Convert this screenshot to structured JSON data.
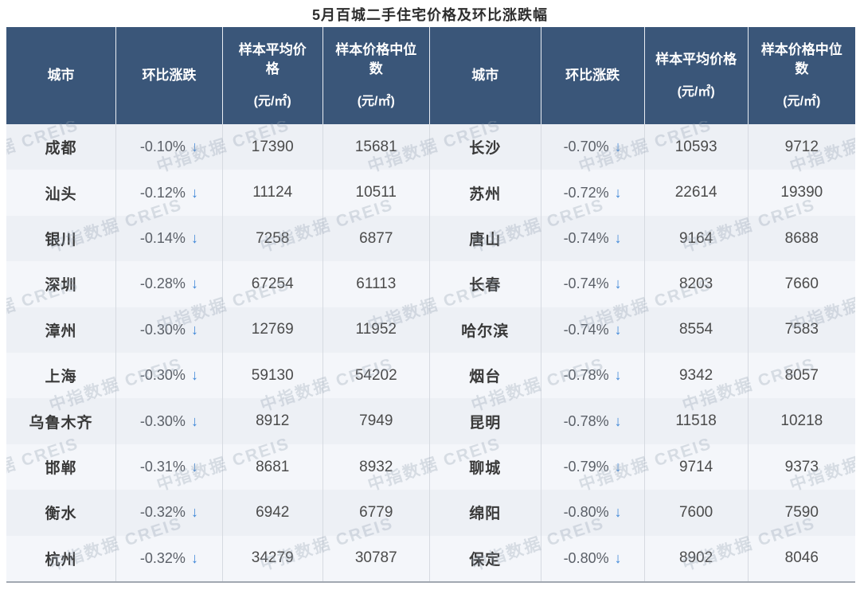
{
  "chart_data": {
    "type": "table",
    "title": "5月百城二手住宅价格及环比涨跌幅",
    "columns": [
      "城市",
      "环比涨跌",
      "样本平均价格",
      "样本价格中位数"
    ],
    "unit_label": "(元/㎡)",
    "arrow_down": "↓",
    "watermark_text": "中指数据 CREIS",
    "rows_left": [
      {
        "city": "成都",
        "change": "-0.10%",
        "avg": "17390",
        "median": "15681"
      },
      {
        "city": "汕头",
        "change": "-0.12%",
        "avg": "11124",
        "median": "10511"
      },
      {
        "city": "银川",
        "change": "-0.14%",
        "avg": "7258",
        "median": "6877"
      },
      {
        "city": "深圳",
        "change": "-0.28%",
        "avg": "67254",
        "median": "61113"
      },
      {
        "city": "漳州",
        "change": "-0.30%",
        "avg": "12769",
        "median": "11952"
      },
      {
        "city": "上海",
        "change": "-0.30%",
        "avg": "59130",
        "median": "54202"
      },
      {
        "city": "乌鲁木齐",
        "change": "-0.30%",
        "avg": "8912",
        "median": "7949"
      },
      {
        "city": "邯郸",
        "change": "-0.31%",
        "avg": "8681",
        "median": "8932"
      },
      {
        "city": "衡水",
        "change": "-0.32%",
        "avg": "6942",
        "median": "6779"
      },
      {
        "city": "杭州",
        "change": "-0.32%",
        "avg": "34279",
        "median": "30787"
      }
    ],
    "rows_right": [
      {
        "city": "长沙",
        "change": "-0.70%",
        "avg": "10593",
        "median": "9712"
      },
      {
        "city": "苏州",
        "change": "-0.72%",
        "avg": "22614",
        "median": "19390"
      },
      {
        "city": "唐山",
        "change": "-0.74%",
        "avg": "9164",
        "median": "8688"
      },
      {
        "city": "长春",
        "change": "-0.74%",
        "avg": "8203",
        "median": "7660"
      },
      {
        "city": "哈尔滨",
        "change": "-0.74%",
        "avg": "8554",
        "median": "7583"
      },
      {
        "city": "烟台",
        "change": "-0.78%",
        "avg": "9342",
        "median": "8057"
      },
      {
        "city": "昆明",
        "change": "-0.78%",
        "avg": "11518",
        "median": "10218"
      },
      {
        "city": "聊城",
        "change": "-0.79%",
        "avg": "9714",
        "median": "9373"
      },
      {
        "city": "绵阳",
        "change": "-0.80%",
        "avg": "7600",
        "median": "7590"
      },
      {
        "city": "保定",
        "change": "-0.80%",
        "avg": "8902",
        "median": "8046"
      }
    ],
    "colors": {
      "header_bg": "#3a5679",
      "arrow_blue": "#3d86d8",
      "row_odd": "#edf0f5",
      "row_even": "#f4f6fa",
      "watermark": "#929eb1"
    }
  }
}
